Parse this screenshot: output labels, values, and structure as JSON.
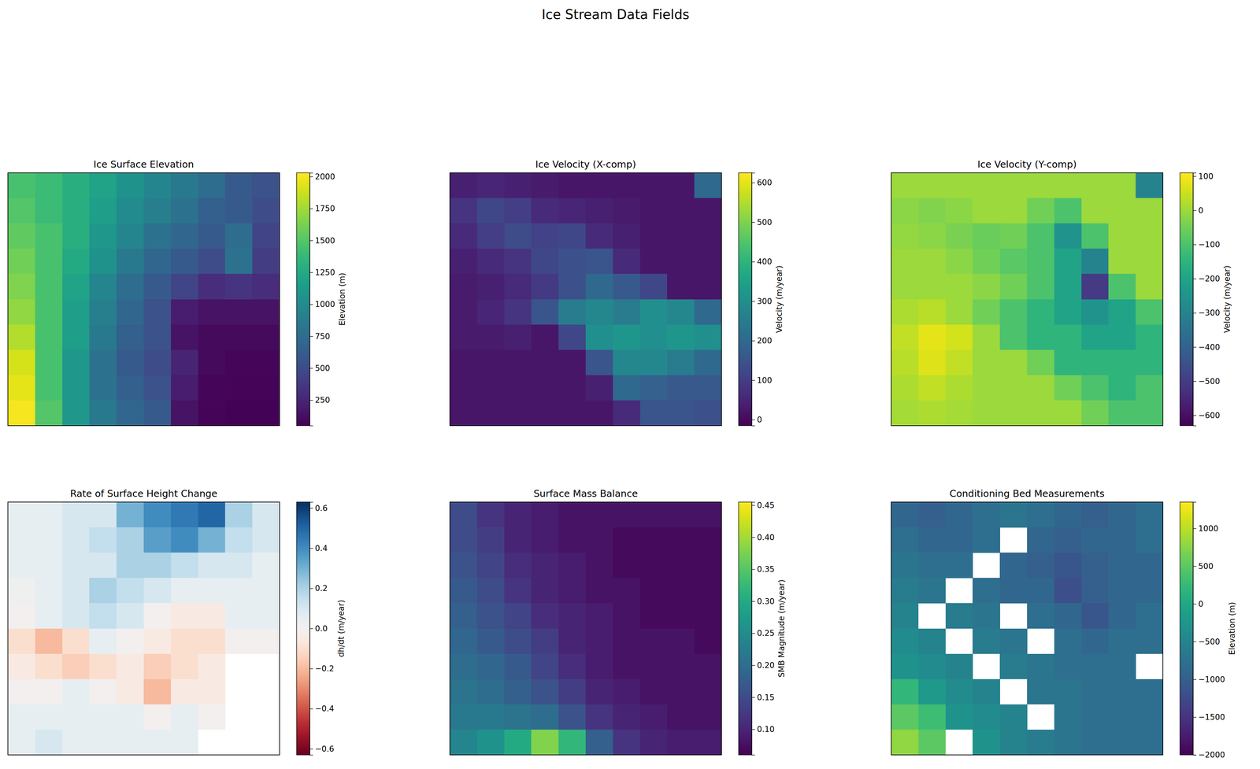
{
  "title": "Ice Stream Data Fields",
  "chart_data": [
    {
      "type": "heatmap",
      "title": "Ice Surface Elevation",
      "colorbar_label": "Elevation (m)",
      "color": "viridis",
      "tick_labels": false,
      "zlim": [
        50,
        2030
      ],
      "zticks": [
        250,
        500,
        750,
        1000,
        1250,
        1500,
        1750,
        2000
      ],
      "z": [
        [
          1450,
          1400,
          1300,
          1200,
          1050,
          950,
          850,
          750,
          600,
          550
        ],
        [
          1500,
          1400,
          1300,
          1150,
          1000,
          900,
          800,
          650,
          600,
          500
        ],
        [
          1550,
          1450,
          1300,
          1100,
          950,
          800,
          700,
          600,
          750,
          450
        ],
        [
          1600,
          1450,
          1250,
          1050,
          850,
          700,
          600,
          500,
          800,
          400
        ],
        [
          1650,
          1450,
          1200,
          950,
          750,
          600,
          450,
          300,
          350,
          300
        ],
        [
          1700,
          1450,
          1150,
          900,
          700,
          550,
          200,
          150,
          150,
          150
        ],
        [
          1800,
          1450,
          1150,
          850,
          650,
          550,
          150,
          100,
          100,
          100
        ],
        [
          1900,
          1450,
          1100,
          800,
          600,
          500,
          250,
          100,
          80,
          80
        ],
        [
          1950,
          1450,
          1100,
          800,
          650,
          550,
          200,
          80,
          70,
          70
        ],
        [
          2000,
          1500,
          1100,
          850,
          700,
          600,
          150,
          70,
          60,
          60
        ]
      ]
    },
    {
      "type": "heatmap",
      "title": "Ice Velocity (X-comp)",
      "colorbar_label": "Velocity (m/year)",
      "color": "viridis",
      "tick_labels": false,
      "zlim": [
        -15,
        625
      ],
      "zticks": [
        0,
        100,
        200,
        300,
        400,
        500,
        600
      ],
      "z": [
        [
          40,
          50,
          40,
          30,
          20,
          20,
          20,
          20,
          20,
          200
        ],
        [
          80,
          120,
          100,
          60,
          50,
          40,
          30,
          20,
          20,
          20
        ],
        [
          60,
          100,
          130,
          110,
          120,
          60,
          40,
          20,
          20,
          20
        ],
        [
          40,
          60,
          80,
          120,
          140,
          150,
          60,
          20,
          20,
          20
        ],
        [
          30,
          40,
          60,
          90,
          140,
          200,
          160,
          120,
          20,
          20
        ],
        [
          30,
          50,
          80,
          150,
          250,
          280,
          250,
          300,
          280,
          200
        ],
        [
          30,
          30,
          40,
          20,
          120,
          300,
          320,
          300,
          320,
          300
        ],
        [
          20,
          20,
          20,
          20,
          20,
          150,
          280,
          280,
          250,
          200
        ],
        [
          20,
          20,
          20,
          20,
          20,
          40,
          200,
          180,
          160,
          160
        ],
        [
          20,
          20,
          20,
          20,
          20,
          20,
          60,
          150,
          150,
          140
        ]
      ]
    },
    {
      "type": "heatmap",
      "title": "Ice Velocity (Y-comp)",
      "colorbar_label": "Velocity (m/year)",
      "color": "viridis",
      "tick_labels": false,
      "zlim": [
        -630,
        110
      ],
      "zticks": [
        {
          "value": -600,
          "label": "−600"
        },
        {
          "value": -500,
          "label": "−500"
        },
        {
          "value": -400,
          "label": "−400"
        },
        {
          "value": -300,
          "label": "−300"
        },
        {
          "value": -200,
          "label": "−200"
        },
        {
          "value": -100,
          "label": "−100"
        },
        0,
        100
      ],
      "z": [
        [
          0,
          0,
          0,
          0,
          0,
          0,
          0,
          0,
          0,
          -300
        ],
        [
          -20,
          -30,
          -20,
          0,
          0,
          -50,
          -100,
          0,
          0,
          0
        ],
        [
          -10,
          -20,
          -40,
          -60,
          -50,
          -100,
          -250,
          -100,
          0,
          0
        ],
        [
          0,
          0,
          -20,
          -50,
          -80,
          -100,
          -200,
          -300,
          0,
          0
        ],
        [
          0,
          0,
          0,
          -20,
          -50,
          -100,
          -200,
          -500,
          -100,
          0
        ],
        [
          20,
          30,
          0,
          -50,
          -100,
          -150,
          -200,
          -250,
          -200,
          -100
        ],
        [
          40,
          80,
          60,
          0,
          -100,
          -150,
          -150,
          -200,
          -200,
          -150
        ],
        [
          30,
          70,
          40,
          0,
          0,
          -50,
          -150,
          -150,
          -150,
          -150
        ],
        [
          20,
          40,
          20,
          0,
          0,
          0,
          -50,
          -100,
          -150,
          -100
        ],
        [
          10,
          20,
          10,
          0,
          0,
          0,
          0,
          -50,
          -100,
          -100
        ]
      ]
    },
    {
      "type": "heatmap",
      "title": "Rate of Surface Height Change",
      "colorbar_label": "dh/dt (m/year)",
      "color": "RdBu",
      "tick_labels": false,
      "zlim": [
        -0.63,
        0.63
      ],
      "zticks": [
        {
          "value": -0.6,
          "label": "−0.6"
        },
        {
          "value": -0.4,
          "label": "−0.4"
        },
        {
          "value": -0.2,
          "label": "−0.2"
        },
        {
          "value": 0,
          "label": "0.0"
        },
        0.2,
        0.4,
        0.6
      ],
      "z": [
        [
          0.05,
          0.05,
          0.1,
          0.1,
          0.3,
          0.4,
          0.45,
          0.5,
          0.2,
          0.1
        ],
        [
          0.05,
          0.05,
          0.1,
          0.15,
          0.2,
          0.35,
          0.4,
          0.3,
          0.15,
          0.1
        ],
        [
          0.05,
          0.05,
          0.1,
          0.1,
          0.2,
          0.2,
          0.15,
          0.1,
          0.1,
          0.05
        ],
        [
          0.02,
          0.05,
          0.1,
          0.2,
          0.15,
          0.1,
          0.05,
          0.05,
          0.05,
          0.05
        ],
        [
          0,
          0.05,
          0.1,
          0.15,
          0.1,
          0,
          -0.05,
          -0.05,
          0.05,
          0.05
        ],
        [
          -0.1,
          -0.2,
          -0.1,
          0.05,
          0,
          -0.05,
          -0.1,
          -0.1,
          0,
          0
        ],
        [
          -0.05,
          -0.1,
          -0.15,
          -0.1,
          -0.05,
          -0.15,
          -0.1,
          -0.05,
          null,
          null
        ],
        [
          0,
          0,
          0.05,
          0,
          -0.05,
          -0.2,
          -0.05,
          -0.05,
          null,
          null
        ],
        [
          0.05,
          0.05,
          0.05,
          0.05,
          0.05,
          0,
          0.05,
          0,
          null,
          null
        ],
        [
          0.05,
          0.1,
          0.05,
          0.05,
          0.05,
          0.05,
          0.05,
          null,
          null,
          null
        ]
      ]
    },
    {
      "type": "heatmap",
      "title": "Surface Mass Balance",
      "colorbar_label": "SMB Magnitude (m/year)",
      "color": "viridis",
      "tick_labels": false,
      "zlim": [
        0.06,
        0.455
      ],
      "zticks": [
        {
          "value": 0.1,
          "label": "0.10"
        },
        0.15,
        {
          "value": 0.2,
          "label": "0.20"
        },
        0.25,
        {
          "value": 0.3,
          "label": "0.30"
        },
        0.35,
        {
          "value": 0.4,
          "label": "0.40"
        },
        0.45
      ],
      "z": [
        [
          0.15,
          0.12,
          0.1,
          0.09,
          0.08,
          0.08,
          0.08,
          0.08,
          0.08,
          0.08
        ],
        [
          0.15,
          0.13,
          0.1,
          0.09,
          0.08,
          0.08,
          0.07,
          0.07,
          0.07,
          0.07
        ],
        [
          0.16,
          0.14,
          0.11,
          0.1,
          0.09,
          0.08,
          0.07,
          0.07,
          0.07,
          0.07
        ],
        [
          0.17,
          0.15,
          0.12,
          0.1,
          0.09,
          0.08,
          0.08,
          0.07,
          0.07,
          0.07
        ],
        [
          0.18,
          0.16,
          0.14,
          0.11,
          0.1,
          0.09,
          0.08,
          0.07,
          0.07,
          0.07
        ],
        [
          0.19,
          0.17,
          0.15,
          0.13,
          0.1,
          0.09,
          0.08,
          0.08,
          0.08,
          0.07
        ],
        [
          0.2,
          0.19,
          0.17,
          0.14,
          0.11,
          0.09,
          0.08,
          0.08,
          0.08,
          0.08
        ],
        [
          0.21,
          0.2,
          0.18,
          0.16,
          0.13,
          0.1,
          0.09,
          0.08,
          0.08,
          0.08
        ],
        [
          0.22,
          0.22,
          0.21,
          0.2,
          0.16,
          0.12,
          0.1,
          0.09,
          0.08,
          0.08
        ],
        [
          0.24,
          0.26,
          0.3,
          0.38,
          0.32,
          0.18,
          0.12,
          0.1,
          0.09,
          0.09
        ]
      ]
    },
    {
      "type": "heatmap",
      "title": "Conditioning Bed Measurements",
      "colorbar_label": "Elevation (m)",
      "color": "viridis",
      "tick_labels": false,
      "zlim": [
        -2000,
        1350
      ],
      "zticks": [
        {
          "value": -2000,
          "label": "−2000"
        },
        {
          "value": -1500,
          "label": "−1500"
        },
        {
          "value": -1000,
          "label": "−1000"
        },
        {
          "value": -500,
          "label": "−500"
        },
        0,
        500,
        1000
      ],
      "z": [
        [
          -900,
          -1000,
          -900,
          -800,
          -700,
          -800,
          -900,
          -1000,
          -900,
          -800
        ],
        [
          -800,
          -900,
          -900,
          -800,
          null,
          -900,
          -1000,
          -900,
          -900,
          -800
        ],
        [
          -700,
          -800,
          -800,
          null,
          -900,
          -1000,
          -1100,
          -1000,
          -900,
          -900
        ],
        [
          -600,
          -700,
          null,
          -800,
          -900,
          -900,
          -1200,
          -1000,
          -900,
          -900
        ],
        [
          -500,
          null,
          -600,
          -700,
          null,
          -800,
          -900,
          -1100,
          -900,
          -800
        ],
        [
          -400,
          -500,
          null,
          -600,
          -700,
          null,
          -800,
          -900,
          -800,
          -800
        ],
        [
          -300,
          -400,
          -500,
          null,
          -600,
          -700,
          -800,
          -800,
          -800,
          null
        ],
        [
          200,
          -200,
          -400,
          -500,
          null,
          -700,
          -700,
          -800,
          -800,
          -800
        ],
        [
          500,
          300,
          -300,
          -400,
          -500,
          null,
          -700,
          -800,
          -800,
          -800
        ],
        [
          800,
          500,
          null,
          -300,
          -500,
          -600,
          -700,
          -800,
          -800,
          -800
        ]
      ]
    }
  ]
}
